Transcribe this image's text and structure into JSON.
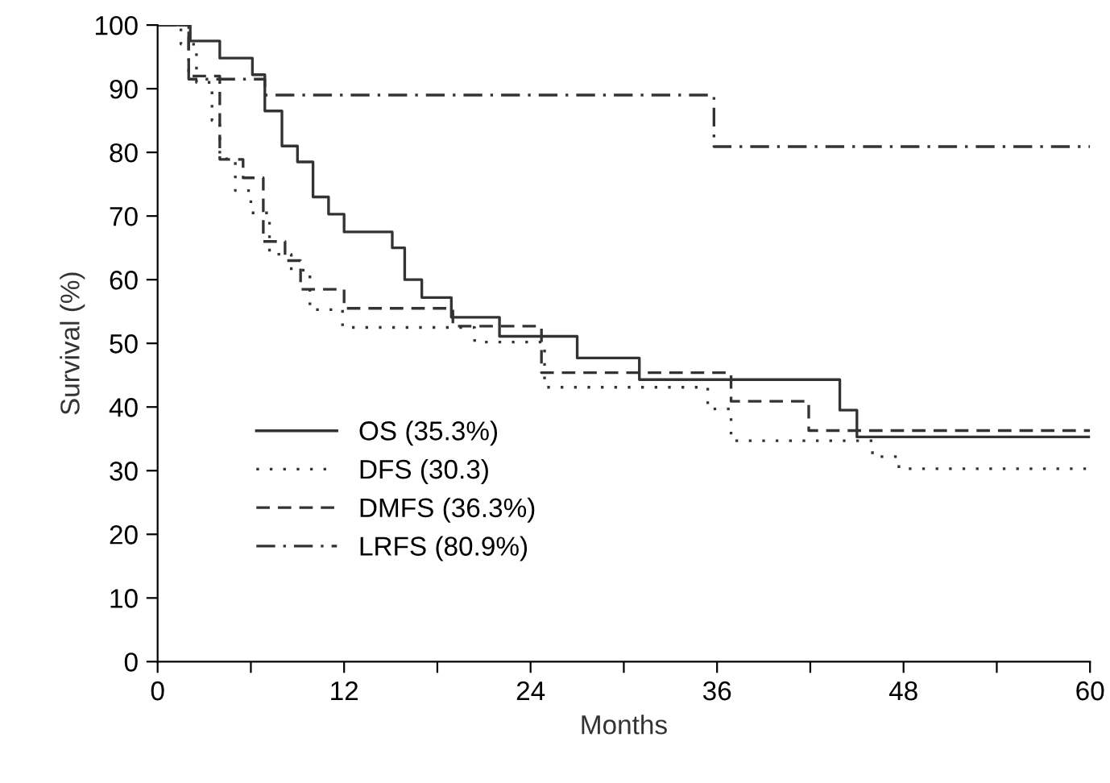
{
  "chart_data": {
    "type": "step",
    "xlabel": "Months",
    "ylabel": "Survival (%)",
    "xlim": [
      0,
      60
    ],
    "ylim": [
      0,
      100
    ],
    "xticks": [
      0,
      {
        "value": 6,
        "label": null
      },
      12,
      {
        "value": 18,
        "label": null
      },
      24,
      {
        "value": 30,
        "label": null
      },
      36,
      {
        "value": 42,
        "label": null
      },
      48,
      {
        "value": 54,
        "label": null
      },
      60
    ],
    "yticks": [
      0,
      10,
      20,
      30,
      40,
      50,
      60,
      70,
      80,
      90,
      100
    ],
    "grid": false,
    "legend": "bottom left",
    "marker": "none",
    "series": [
      {
        "name": "OS (35.3%)",
        "color": "#333333",
        "line_style": "solid",
        "x": [
          0,
          2.1,
          4.0,
          6.1,
          6.9,
          8.0,
          9.0,
          10.0,
          11.0,
          12.0,
          15.1,
          15.9,
          17.0,
          18.9,
          22.0,
          27.0,
          31.0,
          43.9,
          45.0,
          60
        ],
        "values": [
          100,
          97.5,
          94.8,
          92.2,
          86.5,
          81,
          78.5,
          73,
          70.3,
          67.5,
          65,
          60,
          57.2,
          54.1,
          51.1,
          47.7,
          44.3,
          39.5,
          35.3,
          35.3
        ]
      },
      {
        "name": "DFS (30.3)",
        "color": "#333333",
        "line_style": "dotted",
        "x": [
          0,
          1.5,
          2.5,
          3.5,
          4.0,
          5.0,
          6.0,
          7.2,
          8.6,
          9.8,
          11.9,
          20.4,
          24.9,
          35.4,
          36.9,
          46.0,
          47.7,
          60
        ],
        "values": [
          100,
          97,
          91,
          85,
          79,
          74,
          70.5,
          64,
          61.5,
          55.3,
          52.5,
          50.2,
          43.1,
          39.7,
          34.7,
          32.2,
          30.3,
          30.3
        ]
      },
      {
        "name": "DMFS (36.3%)",
        "color": "#333333",
        "line_style": "dashed",
        "x": [
          0,
          2.0,
          4.0,
          5.5,
          6.8,
          8.2,
          9.2,
          12.0,
          19.0,
          24.7,
          36.9,
          41.9,
          60
        ],
        "values": [
          100,
          92,
          78.9,
          76,
          66,
          63,
          58.5,
          55.5,
          52.7,
          45.4,
          40.9,
          36.3,
          36.3
        ]
      },
      {
        "name": "LRFS (80.9%)",
        "color": "#333333",
        "line_style": "dashdot",
        "x": [
          0,
          2.0,
          6.9,
          35.8,
          60
        ],
        "values": [
          100,
          91.5,
          89,
          80.9,
          80.9
        ]
      }
    ]
  }
}
